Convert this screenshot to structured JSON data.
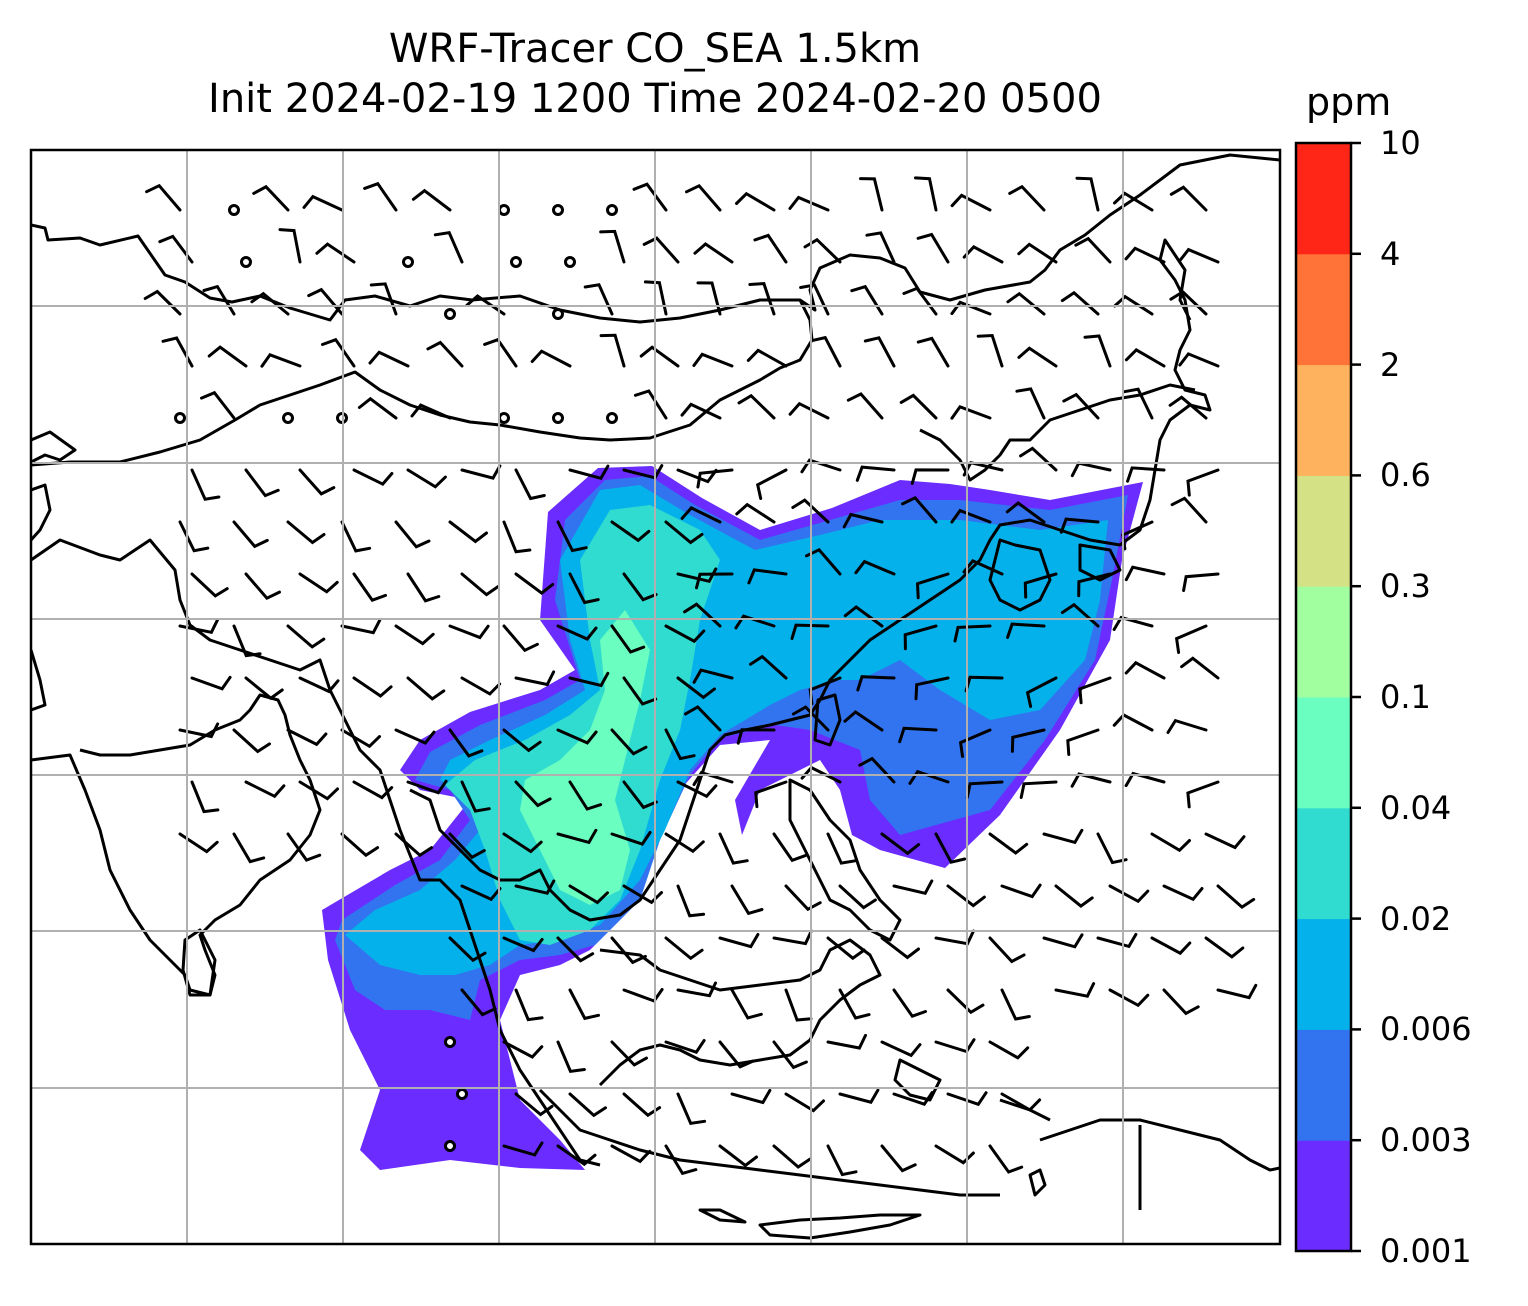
{
  "title": {
    "line1": "WRF-Tracer CO_SEA 1.5km",
    "line2": "Init 2024-02-19 1200 Time 2024-02-20 0500"
  },
  "colorbar": {
    "unit": "ppm",
    "levels": [
      "0.001",
      "0.003",
      "0.006",
      "0.02",
      "0.04",
      "0.1",
      "0.3",
      "0.6",
      "2",
      "4",
      "10"
    ],
    "colors": [
      "#6a2cff",
      "#3273f0",
      "#05b1ea",
      "#30dccf",
      "#6affc0",
      "#a2ffa0",
      "#d4e184",
      "#ffb25e",
      "#ff7238",
      "#ff2618"
    ]
  },
  "map": {
    "type": "filled-contour-with-wind-barbs",
    "region": "South and East Asia",
    "gridlines": true
  }
}
